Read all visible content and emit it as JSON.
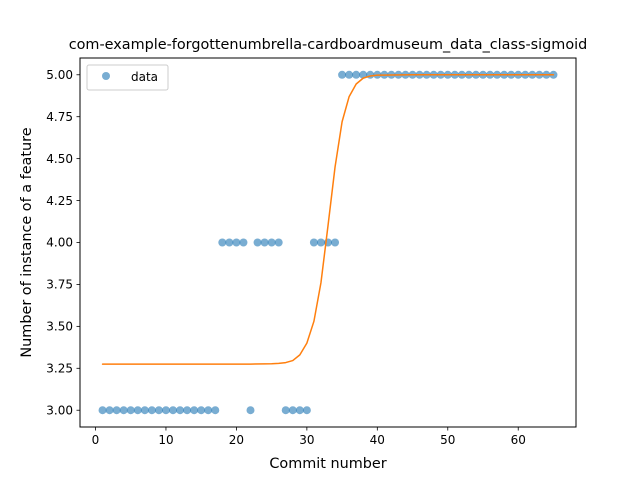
{
  "chart_data": {
    "type": "scatter",
    "title": "com-example-forgottenumbrella-cardboardmuseum_data_class-sigmoid",
    "xlabel": "Commit number",
    "ylabel": "Number of instance of a feature",
    "xlim": [
      -2.2,
      68.2
    ],
    "ylim": [
      2.9,
      5.1
    ],
    "x_ticks": [
      0,
      10,
      20,
      30,
      40,
      50,
      60
    ],
    "y_ticks": [
      3.0,
      3.25,
      3.5,
      3.75,
      4.0,
      4.25,
      4.5,
      4.75,
      5.0
    ],
    "y_tick_labels": [
      "3.00",
      "3.25",
      "3.50",
      "3.75",
      "4.00",
      "4.25",
      "4.50",
      "4.75",
      "5.00"
    ],
    "grid": false,
    "legend": {
      "position": "upper-left",
      "entries": [
        "data"
      ]
    },
    "series": [
      {
        "name": "data",
        "kind": "scatter",
        "color": "#1f77b4",
        "points": [
          [
            1,
            3
          ],
          [
            2,
            3
          ],
          [
            3,
            3
          ],
          [
            4,
            3
          ],
          [
            5,
            3
          ],
          [
            6,
            3
          ],
          [
            7,
            3
          ],
          [
            8,
            3
          ],
          [
            9,
            3
          ],
          [
            10,
            3
          ],
          [
            11,
            3
          ],
          [
            12,
            3
          ],
          [
            13,
            3
          ],
          [
            14,
            3
          ],
          [
            15,
            3
          ],
          [
            16,
            3
          ],
          [
            17,
            3
          ],
          [
            18,
            4
          ],
          [
            19,
            4
          ],
          [
            20,
            4
          ],
          [
            21,
            4
          ],
          [
            22,
            3
          ],
          [
            23,
            4
          ],
          [
            24,
            4
          ],
          [
            25,
            4
          ],
          [
            26,
            4
          ],
          [
            27,
            3
          ],
          [
            28,
            3
          ],
          [
            29,
            3
          ],
          [
            30,
            3
          ],
          [
            31,
            4
          ],
          [
            32,
            4
          ],
          [
            33,
            4
          ],
          [
            34,
            4
          ],
          [
            35,
            5
          ],
          [
            36,
            5
          ],
          [
            37,
            5
          ],
          [
            38,
            5
          ],
          [
            39,
            5
          ],
          [
            40,
            5
          ],
          [
            41,
            5
          ],
          [
            42,
            5
          ],
          [
            43,
            5
          ],
          [
            44,
            5
          ],
          [
            45,
            5
          ],
          [
            46,
            5
          ],
          [
            47,
            5
          ],
          [
            48,
            5
          ],
          [
            49,
            5
          ],
          [
            50,
            5
          ],
          [
            51,
            5
          ],
          [
            52,
            5
          ],
          [
            53,
            5
          ],
          [
            54,
            5
          ],
          [
            55,
            5
          ],
          [
            56,
            5
          ],
          [
            57,
            5
          ],
          [
            58,
            5
          ],
          [
            59,
            5
          ],
          [
            60,
            5
          ],
          [
            61,
            5
          ],
          [
            62,
            5
          ],
          [
            63,
            5
          ],
          [
            64,
            5
          ],
          [
            65,
            5
          ]
        ]
      },
      {
        "kind": "line",
        "color": "#ff7f0e",
        "points": [
          [
            1,
            3.275
          ],
          [
            5,
            3.275
          ],
          [
            10,
            3.275
          ],
          [
            15,
            3.275
          ],
          [
            20,
            3.275
          ],
          [
            22,
            3.275
          ],
          [
            24,
            3.276
          ],
          [
            25,
            3.277
          ],
          [
            26,
            3.279
          ],
          [
            27,
            3.284
          ],
          [
            28,
            3.296
          ],
          [
            29,
            3.33
          ],
          [
            30,
            3.4
          ],
          [
            31,
            3.53
          ],
          [
            32,
            3.76
          ],
          [
            33,
            4.1
          ],
          [
            34,
            4.45
          ],
          [
            35,
            4.72
          ],
          [
            36,
            4.87
          ],
          [
            37,
            4.945
          ],
          [
            38,
            4.98
          ],
          [
            39,
            4.993
          ],
          [
            40,
            4.998
          ],
          [
            45,
            5.0
          ],
          [
            50,
            5.0
          ],
          [
            55,
            5.0
          ],
          [
            60,
            5.0
          ],
          [
            65,
            5.0
          ]
        ]
      }
    ]
  }
}
